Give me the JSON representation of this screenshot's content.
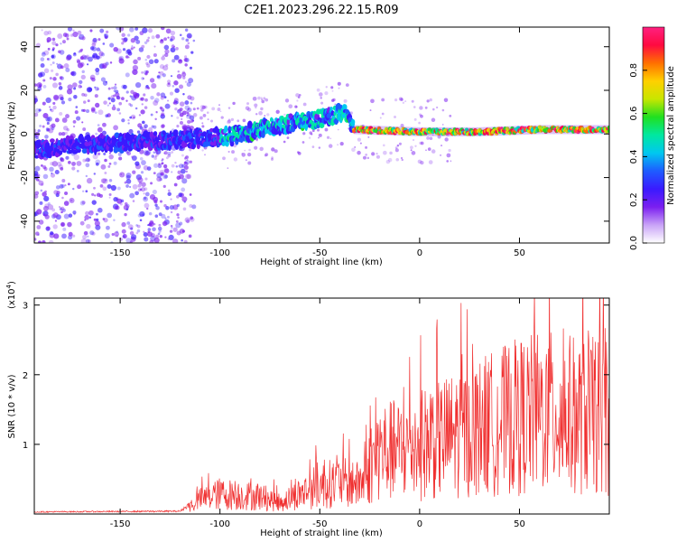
{
  "title": "C2E1.2023.296.22.15.R09",
  "chart_data": [
    {
      "type": "heatmap",
      "xlabel": "Height of straight line (km)",
      "ylabel": "Frequency (Hz)",
      "xlim": [
        -193,
        95
      ],
      "ylim": [
        -50,
        49
      ],
      "xticks": [
        -150,
        -100,
        -50,
        0,
        50
      ],
      "yticks": [
        -40,
        -20,
        0,
        20,
        40
      ],
      "colorbar": {
        "label": "Normalized spectral amplitude",
        "range": [
          0,
          1
        ],
        "ticks": [
          "0.0",
          "0.2",
          "0.4",
          "0.6",
          "0.8"
        ],
        "colormap": [
          "#ffffff",
          "#c9a3f7",
          "#7b1ff0",
          "#3a1aff",
          "#1e5cff",
          "#00c8f0",
          "#00e8a0",
          "#20e020",
          "#c8e600",
          "#ffd000",
          "#ff7000",
          "#ff0a40",
          "#ff2080"
        ]
      },
      "ridge": [
        {
          "x": -190,
          "y": -7
        },
        {
          "x": -170,
          "y": -5
        },
        {
          "x": -150,
          "y": -4
        },
        {
          "x": -130,
          "y": -3
        },
        {
          "x": -110,
          "y": -2
        },
        {
          "x": -95,
          "y": -1
        },
        {
          "x": -85,
          "y": 1
        },
        {
          "x": -75,
          "y": 3
        },
        {
          "x": -65,
          "y": 5
        },
        {
          "x": -55,
          "y": 6
        },
        {
          "x": -45,
          "y": 8
        },
        {
          "x": -37,
          "y": 11
        },
        {
          "x": -33,
          "y": 2
        },
        {
          "x": 0,
          "y": 1
        },
        {
          "x": 30,
          "y": 1
        },
        {
          "x": 60,
          "y": 2
        },
        {
          "x": 95,
          "y": 2
        }
      ]
    },
    {
      "type": "line",
      "color": "#f03030",
      "xlabel": "Height of straight line (km)",
      "ylabel": "SNR (10 * v/v)",
      "yscale_label": "(x10",
      "yscale_exp": "4",
      "yscale_close": ")",
      "xlim": [
        -193,
        95
      ],
      "ylim": [
        0,
        3.1
      ],
      "xticks": [
        -150,
        -100,
        -50,
        0,
        50
      ],
      "yticks": [
        1,
        2,
        3
      ],
      "envelope": [
        {
          "x": -193,
          "y": 0.03
        },
        {
          "x": -120,
          "y": 0.04
        },
        {
          "x": -110,
          "y": 0.25
        },
        {
          "x": -100,
          "y": 0.35
        },
        {
          "x": -80,
          "y": 0.3
        },
        {
          "x": -70,
          "y": 0.2
        },
        {
          "x": -60,
          "y": 0.35
        },
        {
          "x": -50,
          "y": 0.5
        },
        {
          "x": -40,
          "y": 0.55
        },
        {
          "x": -30,
          "y": 0.5
        },
        {
          "x": -25,
          "y": 0.8
        },
        {
          "x": -20,
          "y": 1.1
        },
        {
          "x": -10,
          "y": 1.1
        },
        {
          "x": 0,
          "y": 1.2
        },
        {
          "x": 10,
          "y": 1.3
        },
        {
          "x": 20,
          "y": 1.4
        },
        {
          "x": 30,
          "y": 1.5
        },
        {
          "x": 40,
          "y": 1.6
        },
        {
          "x": 50,
          "y": 1.7
        },
        {
          "x": 60,
          "y": 1.75
        },
        {
          "x": 70,
          "y": 1.75
        },
        {
          "x": 80,
          "y": 1.7
        },
        {
          "x": 95,
          "y": 1.7
        }
      ]
    }
  ]
}
